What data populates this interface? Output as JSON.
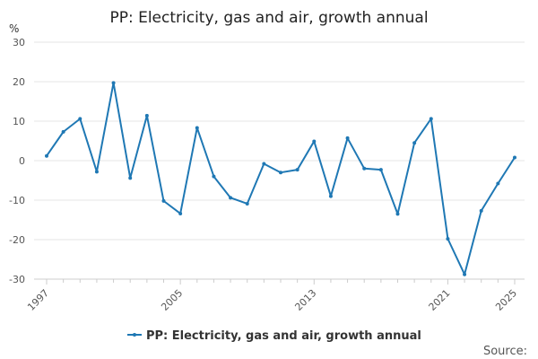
{
  "chart_data": {
    "type": "line",
    "title": "PP: Electricity, gas and air, growth annual",
    "ylabel": "%",
    "xlabel": "",
    "ylim": [
      -30,
      30
    ],
    "yticks": [
      -30,
      -20,
      -10,
      0,
      10,
      20,
      30
    ],
    "xlim": [
      1997,
      2025
    ],
    "xtick_labels": [
      1997,
      2005,
      2013,
      2021,
      2025
    ],
    "grid": true,
    "legend_position": "bottom-center",
    "series": [
      {
        "name": "PP: Electricity, gas and air, growth annual",
        "color": "#1f78b4",
        "x": [
          1997,
          1998,
          1999,
          2000,
          2001,
          2002,
          2003,
          2004,
          2005,
          2006,
          2007,
          2008,
          2009,
          2010,
          2011,
          2012,
          2013,
          2014,
          2015,
          2016,
          2017,
          2018,
          2019,
          2020,
          2021,
          2022,
          2023,
          2024,
          2025
        ],
        "values": [
          1.2,
          7.3,
          10.6,
          -2.8,
          19.7,
          -4.4,
          11.4,
          -10.2,
          -13.4,
          8.3,
          -4.0,
          -9.4,
          -10.9,
          -0.8,
          -3.0,
          -2.3,
          4.9,
          -9.0,
          5.7,
          -2.0,
          -2.3,
          -13.5,
          4.5,
          10.6,
          -19.8,
          -28.8,
          -12.7,
          -5.8,
          0.8
        ]
      }
    ]
  },
  "source_label": "Source:"
}
